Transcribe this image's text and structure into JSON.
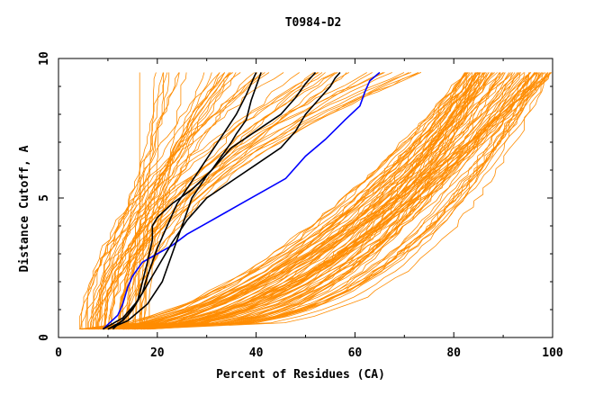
{
  "chart_data": {
    "type": "line",
    "title": "T0984-D2",
    "xlabel": "Percent of Residues (CA)",
    "ylabel": "Distance Cutoff, A",
    "xlim": [
      0,
      100
    ],
    "ylim": [
      0,
      10
    ],
    "xticks": [
      "0",
      "20",
      "40",
      "60",
      "80",
      "100"
    ],
    "yticks": [
      "0",
      "5",
      "10"
    ],
    "grid": false,
    "legend": "none",
    "colors": {
      "models": "#ff8c00",
      "highlight": "#000000",
      "reference": "#0000ff",
      "axes": "#000000"
    },
    "series": [
      {
        "color": "#0000ff",
        "x": [
          9,
          12,
          13,
          14,
          15,
          17,
          20,
          23,
          26,
          30,
          34,
          38,
          42,
          46,
          50,
          54,
          58,
          61,
          62,
          63,
          65
        ],
        "y": [
          0.3,
          0.8,
          1.2,
          1.8,
          2.2,
          2.7,
          3.0,
          3.3,
          3.7,
          4.1,
          4.5,
          4.9,
          5.3,
          5.7,
          6.5,
          7.1,
          7.8,
          8.3,
          8.8,
          9.2,
          9.5
        ]
      },
      {
        "color": "#000000",
        "x": [
          9,
          13,
          16,
          17,
          18,
          19,
          19,
          20,
          23,
          27,
          31,
          35,
          36,
          38,
          39,
          40,
          41
        ],
        "y": [
          0.3,
          0.7,
          1.3,
          2.0,
          2.7,
          3.5,
          4.0,
          4.3,
          4.8,
          5.3,
          6.0,
          7.0,
          7.3,
          7.8,
          8.5,
          9.0,
          9.5
        ]
      },
      {
        "color": "#000000",
        "x": [
          10,
          13,
          15,
          17,
          18,
          20,
          22,
          24,
          27,
          30,
          33,
          36,
          38,
          40
        ],
        "y": [
          0.3,
          0.6,
          1.0,
          1.6,
          2.2,
          3.2,
          4.0,
          4.8,
          5.6,
          6.4,
          7.2,
          8.0,
          8.7,
          9.5
        ]
      },
      {
        "color": "#000000",
        "x": [
          10,
          14,
          18,
          21,
          23,
          25,
          27,
          30,
          35,
          40,
          45,
          48,
          50,
          52
        ],
        "y": [
          0.3,
          0.6,
          1.2,
          2.0,
          3.0,
          4.0,
          5.0,
          5.8,
          6.8,
          7.4,
          8.0,
          8.6,
          9.1,
          9.5
        ]
      },
      {
        "color": "#000000",
        "x": [
          11,
          14,
          17,
          20,
          23,
          26,
          30,
          35,
          40,
          45,
          48,
          50,
          53,
          55,
          56,
          57
        ],
        "y": [
          0.3,
          0.8,
          1.6,
          2.5,
          3.4,
          4.2,
          5.0,
          5.6,
          6.2,
          6.8,
          7.4,
          8.0,
          8.6,
          9.0,
          9.3,
          9.5
        ]
      }
    ],
    "model_count": 140
  }
}
